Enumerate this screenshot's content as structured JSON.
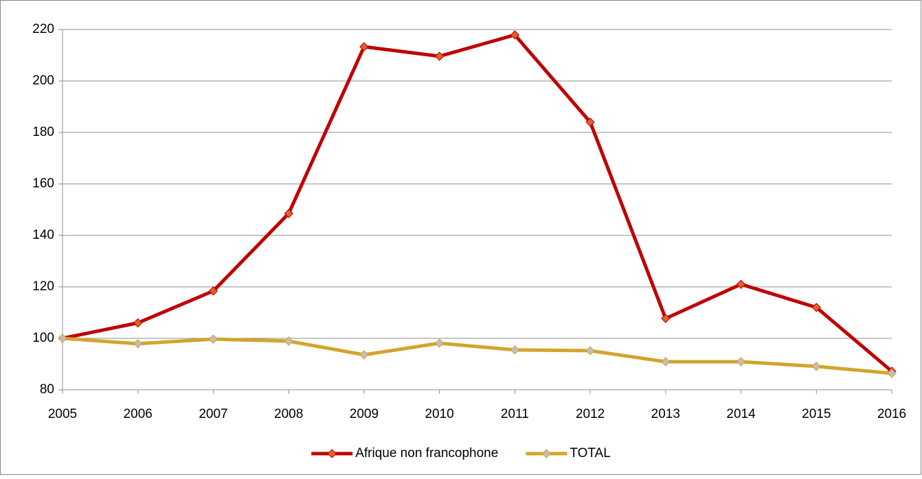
{
  "chart_data": {
    "type": "line",
    "categories": [
      "2005",
      "2006",
      "2007",
      "2008",
      "2009",
      "2010",
      "2011",
      "2012",
      "2013",
      "2014",
      "2015",
      "2016"
    ],
    "series": [
      {
        "name": "Afrique non francophone",
        "color": "#c00000",
        "marker_color": "#e0602c",
        "values": [
          100,
          106,
          118.4,
          148.5,
          213.3,
          209.6,
          217.9,
          184,
          107.7,
          121,
          112,
          87.2
        ]
      },
      {
        "name": "TOTAL",
        "color": "#d4a42c",
        "marker_color": "#bfbfbf",
        "values": [
          100,
          97.9,
          99.7,
          98.9,
          93.6,
          98.1,
          95.5,
          95.2,
          90.9,
          90.9,
          89.1,
          86.4
        ]
      }
    ],
    "ylim": [
      80,
      220
    ],
    "yticks": [
      80,
      100,
      120,
      140,
      160,
      180,
      200,
      220
    ],
    "grid": true,
    "legend": "bottom"
  }
}
